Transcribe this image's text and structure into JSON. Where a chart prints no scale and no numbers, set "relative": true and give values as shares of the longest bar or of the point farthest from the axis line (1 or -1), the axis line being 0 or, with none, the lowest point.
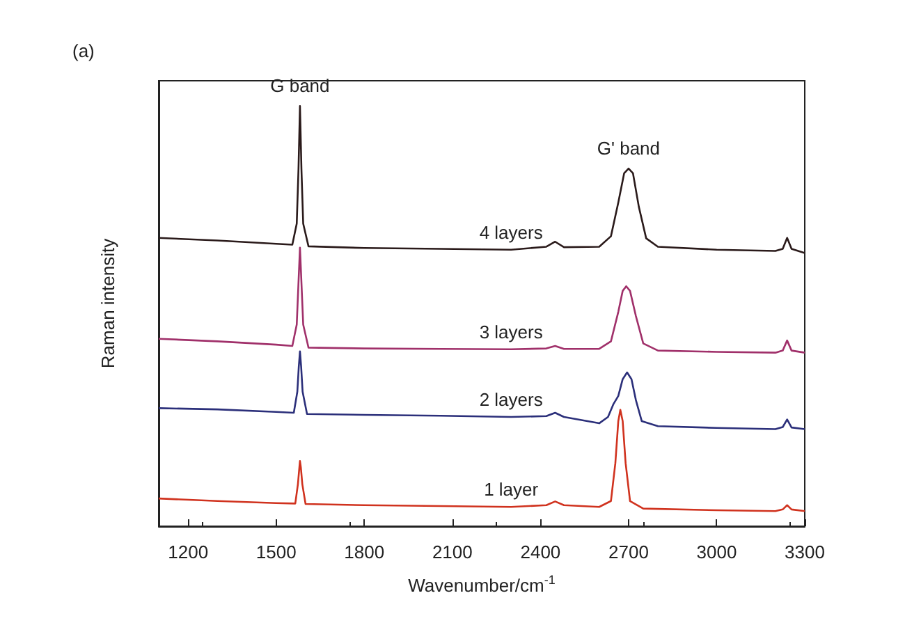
{
  "chart_data": {
    "type": "line",
    "relative": true,
    "xlabel": "Wavenumber/cm$^{-1}$",
    "ylabel": "Raman intensity",
    "xlim": [
      1100,
      3300
    ],
    "xticks": [
      1200,
      1500,
      1800,
      2100,
      2400,
      2700,
      3000,
      3300
    ],
    "tick_labels": "x",
    "marker": "none",
    "annotations": [
      "(a)",
      {
        "text": "G band",
        "x": 1581,
        "y": 1.0
      },
      {
        "text": "G' band",
        "x": 2700,
        "y": 0.851
      }
    ],
    "series": [
      {
        "name": "4 layers",
        "color": "#2a1a1a",
        "x": [
          1100,
          1300,
          1500,
          1555,
          1570,
          1576,
          1581,
          1586,
          1592,
          1610,
          1800,
          2060,
          2300,
          2420,
          2450,
          2480,
          2600,
          2640,
          2665,
          2685,
          2700,
          2715,
          2735,
          2760,
          2800,
          3000,
          3200,
          3225,
          3240,
          3255,
          3300
        ],
        "values": [
          0.686,
          0.68,
          0.672,
          0.67,
          0.72,
          0.85,
          1.0,
          0.85,
          0.72,
          0.666,
          0.662,
          0.66,
          0.658,
          0.665,
          0.677,
          0.664,
          0.665,
          0.69,
          0.77,
          0.84,
          0.851,
          0.84,
          0.76,
          0.685,
          0.665,
          0.658,
          0.655,
          0.66,
          0.686,
          0.66,
          0.65
        ]
      },
      {
        "name": "3 layers",
        "color": "#a0306a",
        "x": [
          1100,
          1300,
          1500,
          1555,
          1570,
          1576,
          1581,
          1586,
          1592,
          1610,
          1800,
          2060,
          2300,
          2420,
          2450,
          2480,
          2600,
          2640,
          2665,
          2680,
          2692,
          2705,
          2725,
          2750,
          2800,
          3000,
          3200,
          3225,
          3240,
          3255,
          3300
        ],
        "values": [
          0.446,
          0.44,
          0.432,
          0.429,
          0.48,
          0.58,
          0.663,
          0.58,
          0.48,
          0.425,
          0.423,
          0.422,
          0.421,
          0.423,
          0.429,
          0.422,
          0.422,
          0.44,
          0.51,
          0.56,
          0.571,
          0.56,
          0.5,
          0.435,
          0.418,
          0.415,
          0.413,
          0.418,
          0.442,
          0.418,
          0.413
        ]
      },
      {
        "name": "2 layers",
        "color": "#2b2f7a",
        "x": [
          1100,
          1300,
          1500,
          1560,
          1572,
          1577,
          1581,
          1585,
          1590,
          1605,
          1800,
          2060,
          2300,
          2420,
          2450,
          2480,
          2600,
          2630,
          2648,
          2665,
          2680,
          2695,
          2710,
          2725,
          2745,
          2800,
          3000,
          3200,
          3225,
          3240,
          3255,
          3300
        ],
        "values": [
          0.281,
          0.278,
          0.272,
          0.27,
          0.32,
          0.38,
          0.416,
          0.38,
          0.32,
          0.267,
          0.265,
          0.263,
          0.26,
          0.262,
          0.27,
          0.26,
          0.245,
          0.26,
          0.29,
          0.31,
          0.35,
          0.366,
          0.35,
          0.3,
          0.25,
          0.238,
          0.234,
          0.231,
          0.236,
          0.254,
          0.235,
          0.231
        ]
      },
      {
        "name": "1 layer",
        "color": "#d0321e",
        "x": [
          1100,
          1300,
          1500,
          1565,
          1574,
          1579,
          1581,
          1584,
          1589,
          1600,
          1800,
          2060,
          2300,
          2420,
          2450,
          2480,
          2600,
          2640,
          2655,
          2665,
          2672,
          2680,
          2690,
          2705,
          2750,
          3000,
          3200,
          3225,
          3240,
          3255,
          3300
        ],
        "values": [
          0.066,
          0.06,
          0.055,
          0.054,
          0.1,
          0.14,
          0.155,
          0.14,
          0.1,
          0.053,
          0.05,
          0.048,
          0.046,
          0.05,
          0.059,
          0.05,
          0.046,
          0.06,
          0.15,
          0.25,
          0.277,
          0.25,
          0.15,
          0.06,
          0.042,
          0.038,
          0.036,
          0.04,
          0.05,
          0.04,
          0.036
        ]
      }
    ]
  }
}
